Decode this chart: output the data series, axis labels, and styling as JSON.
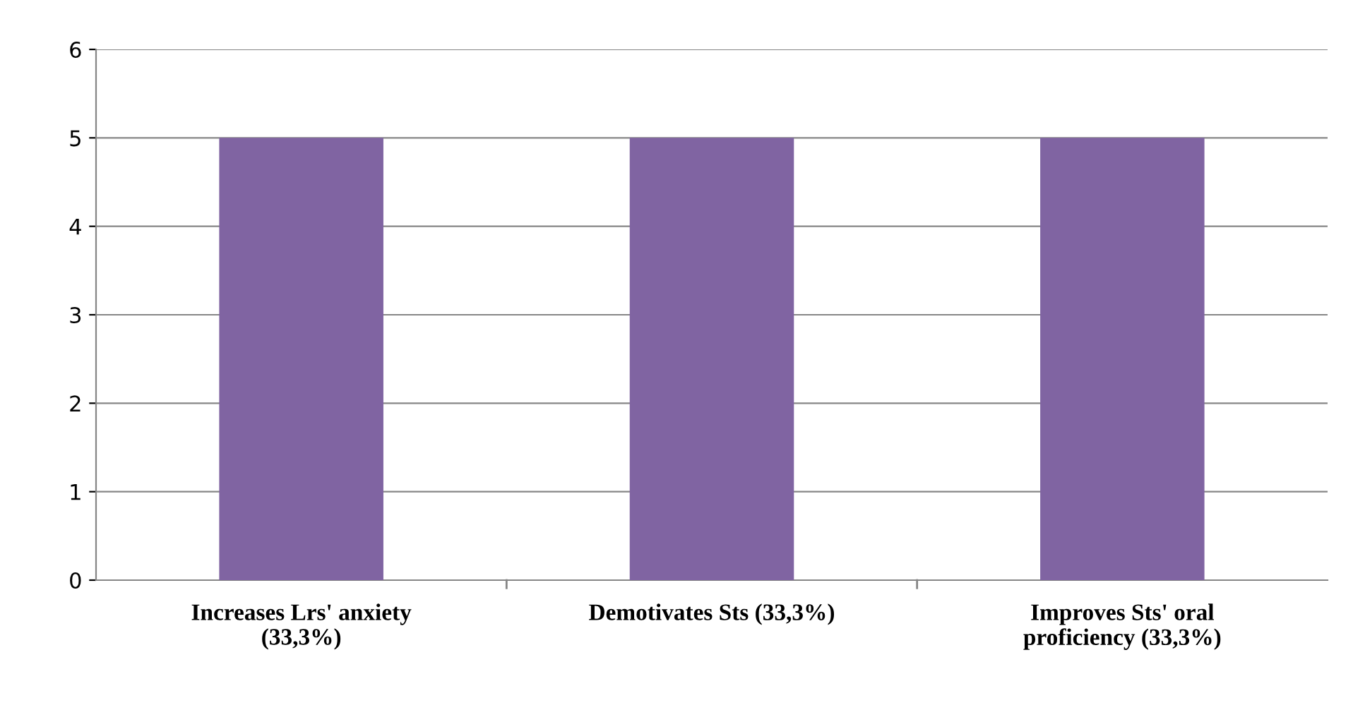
{
  "chart_data": {
    "type": "bar",
    "categories": [
      "Increases Lrs' anxiety\n(33,3%)",
      "Demotivates Sts (33,3%)",
      "Improves Sts' oral\nproficiency (33,3%)"
    ],
    "values": [
      5,
      5,
      5
    ],
    "color": "#8064a2",
    "ylim": [
      0,
      6
    ],
    "yticks": [
      0,
      1,
      2,
      3,
      4,
      5,
      6
    ],
    "grid": "y",
    "legend": false
  }
}
